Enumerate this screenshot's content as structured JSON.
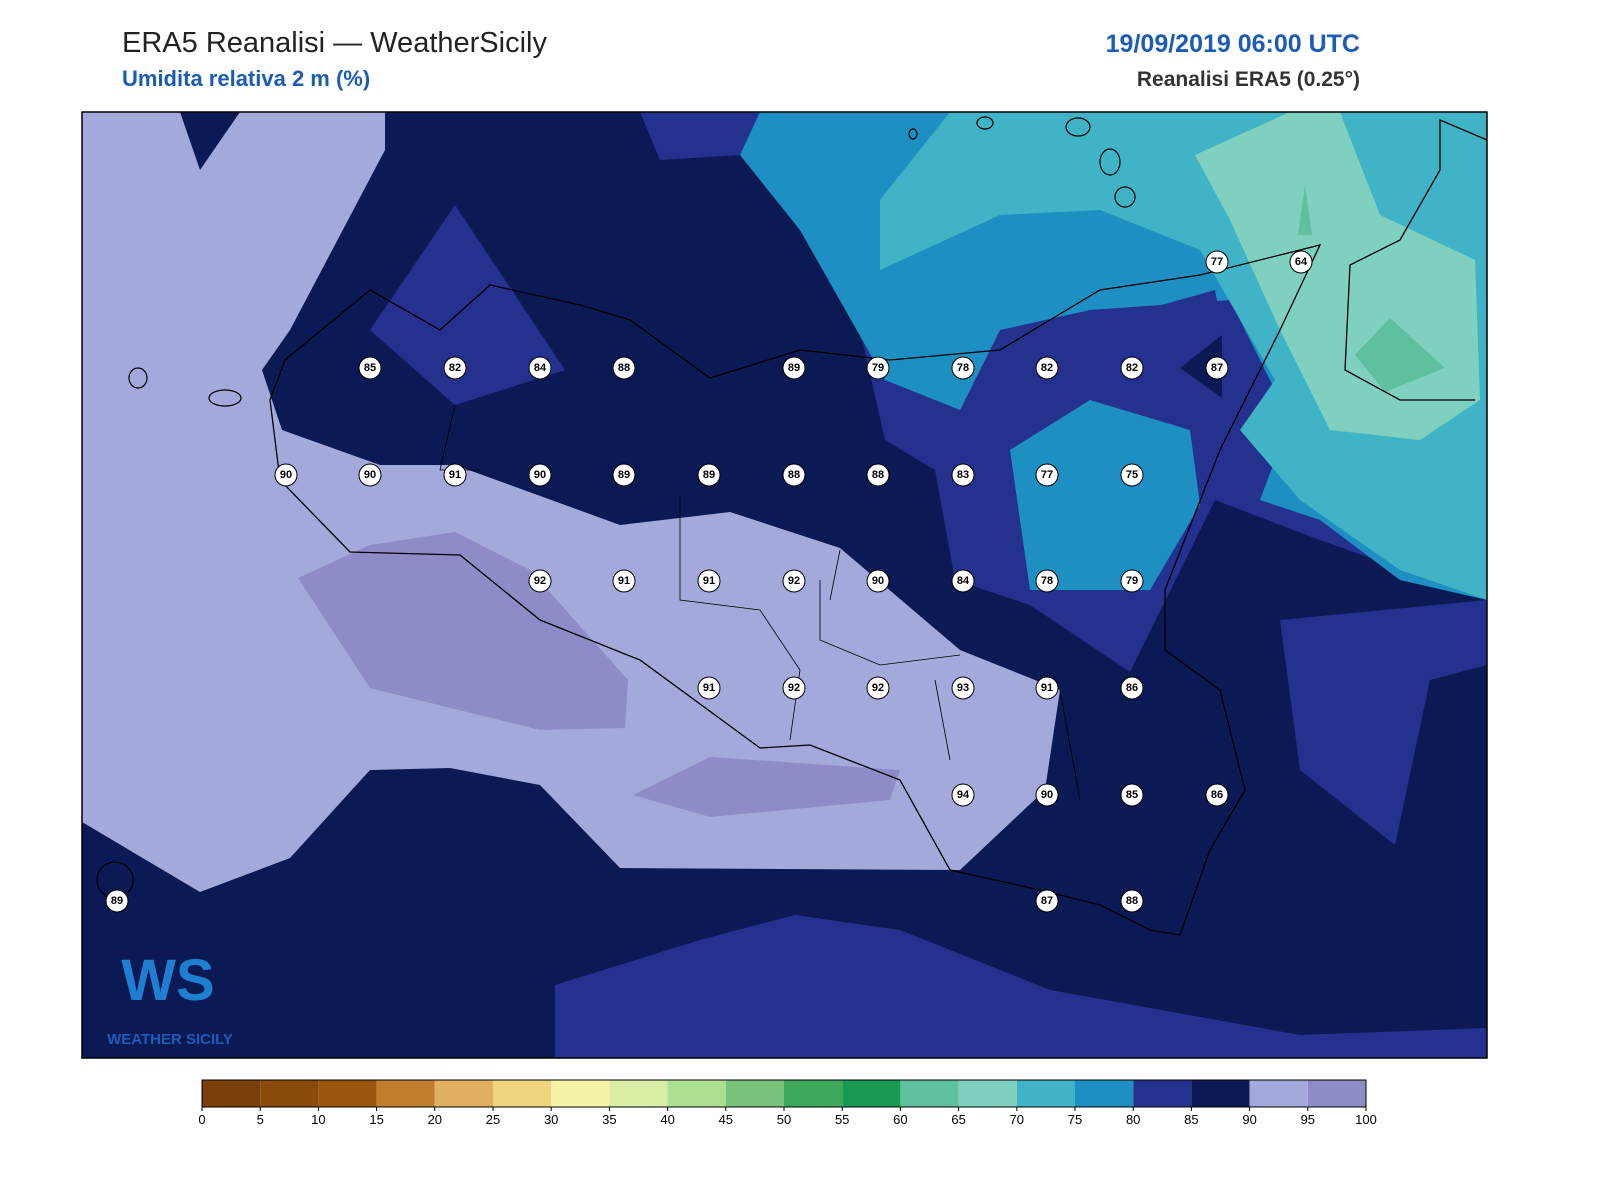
{
  "header": {
    "title": "ERA5 Reanalisi — WeatherSicily",
    "subtitle": "Umidita relativa 2 m (%)",
    "datetime": "19/09/2019 06:00 UTC",
    "source": "Reanalisi ERA5 (0.25°)"
  },
  "logo": {
    "mark": "WS",
    "text": "WEATHER SICILY"
  },
  "stations": {
    "values": [
      77,
      64,
      85,
      82,
      84,
      88,
      89,
      79,
      78,
      82,
      82,
      87,
      90,
      90,
      91,
      90,
      89,
      89,
      88,
      88,
      83,
      77,
      75,
      92,
      91,
      91,
      92,
      90,
      84,
      78,
      79,
      91,
      92,
      92,
      93,
      91,
      86,
      94,
      90,
      85,
      86,
      89,
      87,
      88
    ]
  },
  "colorbar": {
    "ticks": [
      0,
      5,
      10,
      15,
      20,
      25,
      30,
      35,
      40,
      45,
      50,
      55,
      60,
      65,
      70,
      75,
      80,
      85,
      90,
      95,
      100
    ],
    "colors": [
      "#7a3f0a",
      "#8a4a0c",
      "#9c560f",
      "#c07e2c",
      "#e0b060",
      "#f0d47e",
      "#f6f4a6",
      "#d9eda4",
      "#addf91",
      "#79c47a",
      "#3ea95b",
      "#199a53",
      "#5ec09e",
      "#80d0bf",
      "#40b4c6",
      "#1e8fc2",
      "#24318f",
      "#0b1a55",
      "#a3a9da",
      "#8e8cc7"
    ]
  }
}
